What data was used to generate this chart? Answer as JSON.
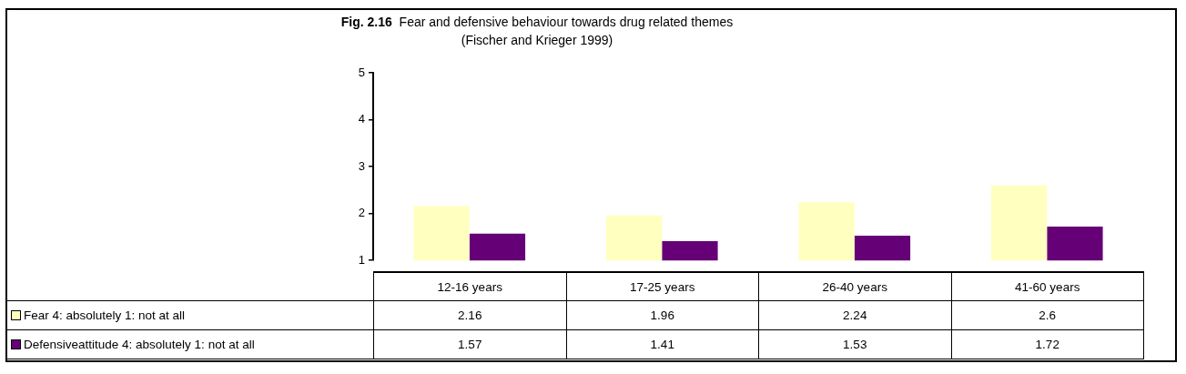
{
  "chart_data": {
    "type": "bar",
    "title": "Fig. 2.16  Fear and defensive behaviour towards drug related themes",
    "subtitle": "(Fischer and Krieger 1999)",
    "categories": [
      "12-16 years",
      "17-25 years",
      "26-40 years",
      "41-60 years"
    ],
    "series": [
      {
        "name": "Fear 4: absolutely 1: not at all",
        "color": "#ffffc0",
        "values": [
          2.16,
          1.96,
          2.24,
          2.6
        ]
      },
      {
        "name": "Defensiveattitude 4: absolutely  1: not at all",
        "color": "#660077",
        "values": [
          1.57,
          1.41,
          1.53,
          1.72
        ]
      }
    ],
    "ylim": [
      1,
      5
    ],
    "yticks": [
      1,
      2,
      3,
      4,
      5
    ],
    "grid": false,
    "legend": "bottom left",
    "data_labels": true
  }
}
